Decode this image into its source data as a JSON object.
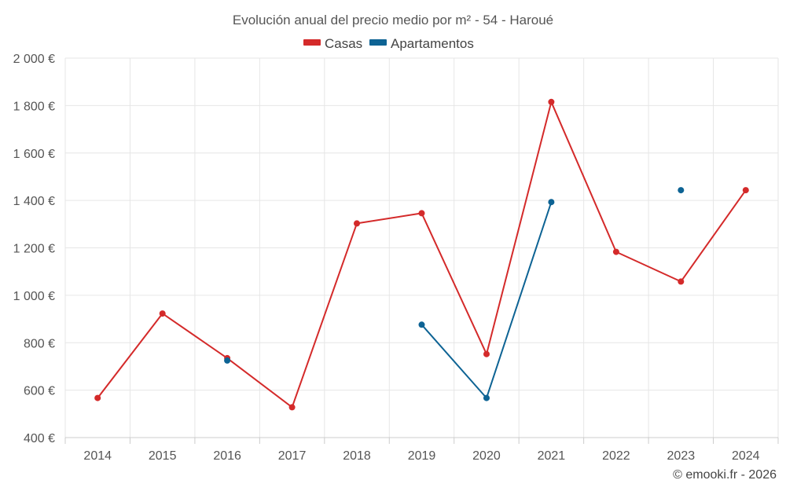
{
  "chart_data": {
    "type": "line",
    "title": "Evolución anual del precio medio por m² - 54 - Haroué",
    "categories": [
      "2014",
      "2015",
      "2016",
      "2017",
      "2018",
      "2019",
      "2020",
      "2021",
      "2022",
      "2023",
      "2024"
    ],
    "series": [
      {
        "name": "Casas",
        "color": "#d42a2a",
        "values": [
          567,
          923,
          735,
          528,
          1303,
          1346,
          752,
          1815,
          1183,
          1058,
          1443
        ]
      },
      {
        "name": "Apartamentos",
        "color": "#0d6394",
        "values": [
          null,
          null,
          725,
          null,
          null,
          876,
          567,
          1393,
          null,
          1443,
          null
        ]
      }
    ],
    "ylim": [
      400,
      2000
    ],
    "yticks": [
      400,
      600,
      800,
      1000,
      1200,
      1400,
      1600,
      1800,
      2000
    ],
    "ytick_labels": [
      "400 €",
      "600 €",
      "800 €",
      "1 000 €",
      "1 200 €",
      "1 400 €",
      "1 600 €",
      "1 800 €",
      "2 000 €"
    ],
    "xlabel": "",
    "ylabel": "",
    "grid": true,
    "legend_position": "top-center"
  },
  "credit": "© emooki.fr - 2026"
}
